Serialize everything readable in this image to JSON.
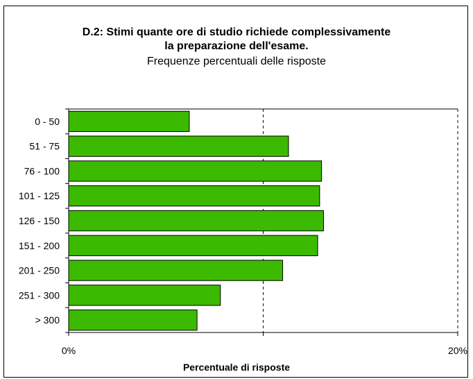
{
  "chart_data": {
    "type": "bar",
    "orientation": "horizontal",
    "title": "D.2: Stimi quante ore di studio richiede complessivamente",
    "title_line2": "la preparazione dell'esame.",
    "subtitle": "Frequenze percentuali delle risposte",
    "xlabel": "Percentuale di risposte",
    "ylabel": "",
    "categories": [
      "0 - 50",
      "51 - 75",
      "76 - 100",
      "101 - 125",
      "126 - 150",
      "151 - 200",
      "201 - 250",
      "251 - 300",
      "> 300"
    ],
    "values": [
      6.2,
      11.3,
      13.0,
      12.9,
      13.1,
      12.8,
      11.0,
      7.8,
      6.6
    ],
    "xlim": [
      0,
      20
    ],
    "xticks": [
      "0%",
      "20%"
    ],
    "gridline": "dashed at 10%",
    "bar_color": "#3cba00",
    "legend": "none"
  }
}
